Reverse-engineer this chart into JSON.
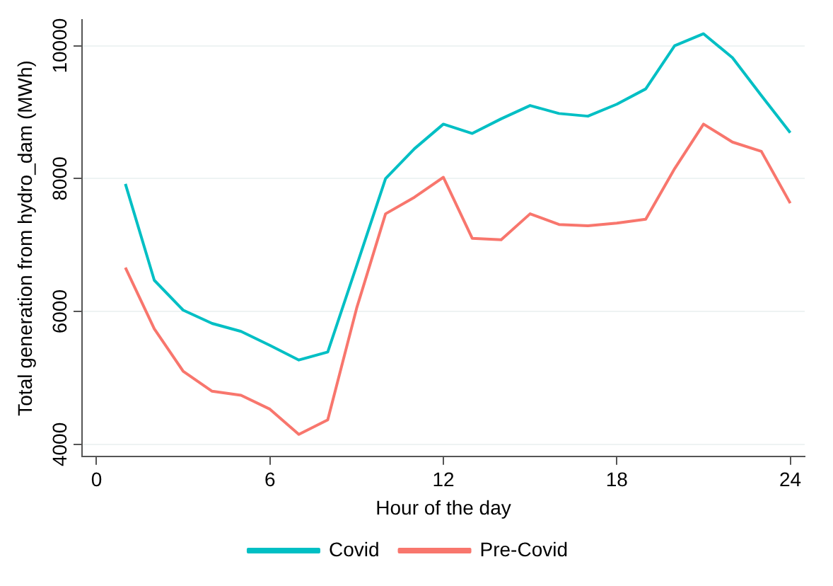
{
  "chart_data": {
    "type": "line",
    "xlabel": "Hour of the day",
    "ylabel": "Total generation from hydro_dam (MWh)",
    "x": [
      1,
      2,
      3,
      4,
      5,
      6,
      7,
      8,
      9,
      10,
      11,
      12,
      13,
      14,
      15,
      16,
      17,
      18,
      19,
      20,
      21,
      22,
      23,
      24
    ],
    "series": [
      {
        "name": "Covid",
        "color": "#00bfc4",
        "values": [
          7920,
          6470,
          6020,
          5820,
          5700,
          5490,
          5270,
          5390,
          6690,
          8000,
          8450,
          8820,
          8680,
          8900,
          9100,
          8980,
          8940,
          9120,
          9350,
          10000,
          10180,
          9820,
          9250,
          8690
        ]
      },
      {
        "name": "Pre-Covid",
        "color": "#f8766d",
        "values": [
          6660,
          5740,
          5100,
          4800,
          4740,
          4530,
          4150,
          4370,
          6050,
          7470,
          7720,
          8020,
          7100,
          7080,
          7470,
          7310,
          7290,
          7330,
          7390,
          8150,
          8820,
          8550,
          8410,
          7630
        ]
      }
    ],
    "xlim": [
      -0.5,
      24.5
    ],
    "xticks": [
      0,
      6,
      12,
      18,
      24
    ],
    "ylim": [
      3820,
      10390
    ],
    "yticks": [
      4000,
      6000,
      8000,
      10000
    ],
    "grid": "y",
    "legend": "bottom",
    "marker": "none",
    "line_style": "solid"
  }
}
